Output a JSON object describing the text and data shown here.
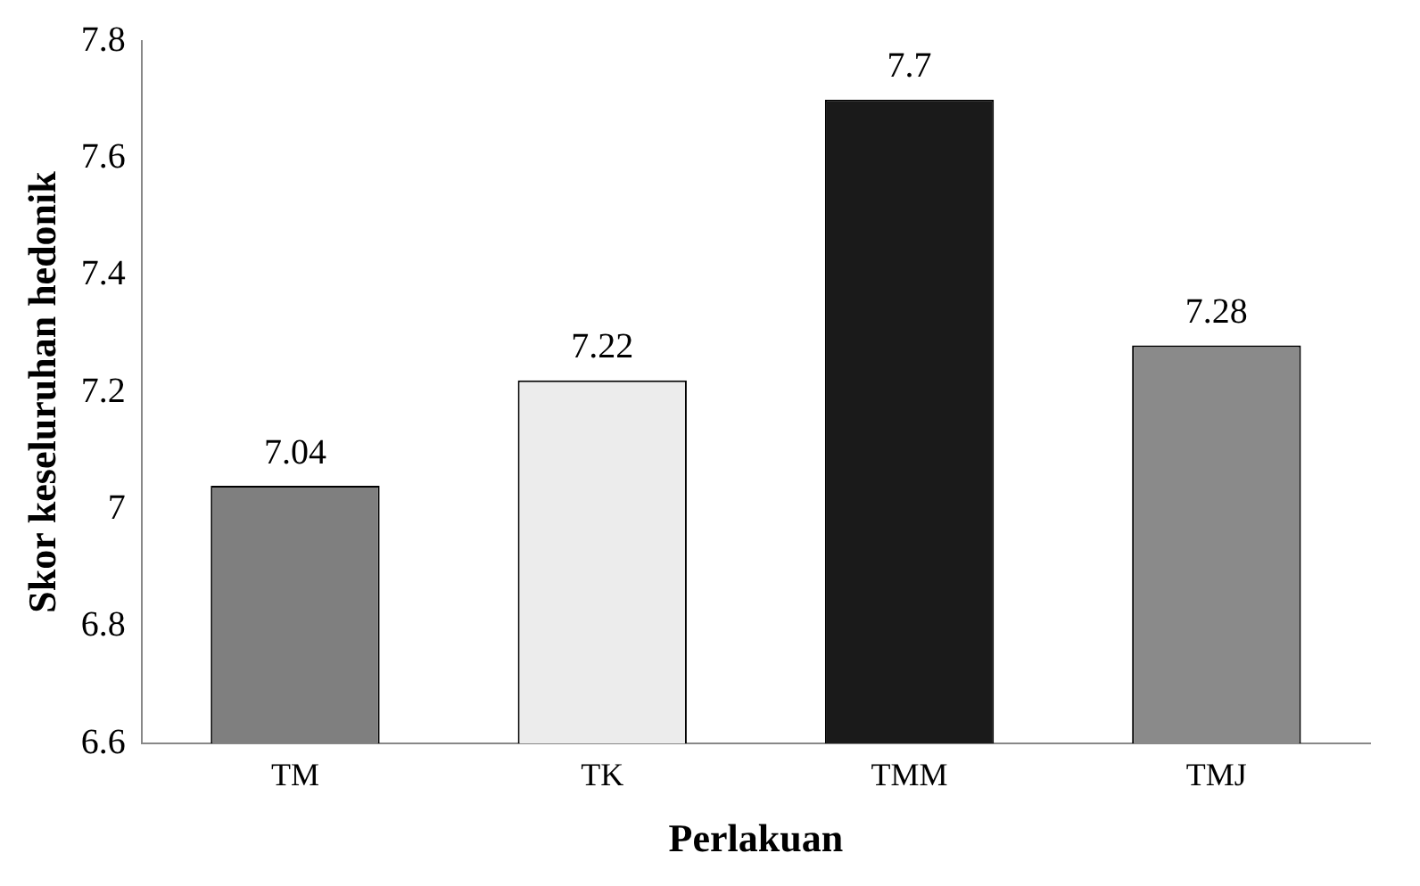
{
  "chart_data": {
    "type": "bar",
    "xlabel": "Perlakuan",
    "ylabel": "Skor keseluruhan hedonik",
    "categories": [
      "TM",
      "TK",
      "TMM",
      "TMJ"
    ],
    "values": [
      7.04,
      7.22,
      7.7,
      7.28
    ],
    "colors": [
      "#7f7f7f",
      "#ececec",
      "#1a1a1a",
      "#8a8a8a"
    ],
    "ylim": [
      6.6,
      7.8
    ],
    "yticks": [
      6.6,
      6.8,
      7,
      7.2,
      7.4,
      7.6,
      7.8
    ],
    "grid": false,
    "legend": false,
    "data_labels": true
  }
}
